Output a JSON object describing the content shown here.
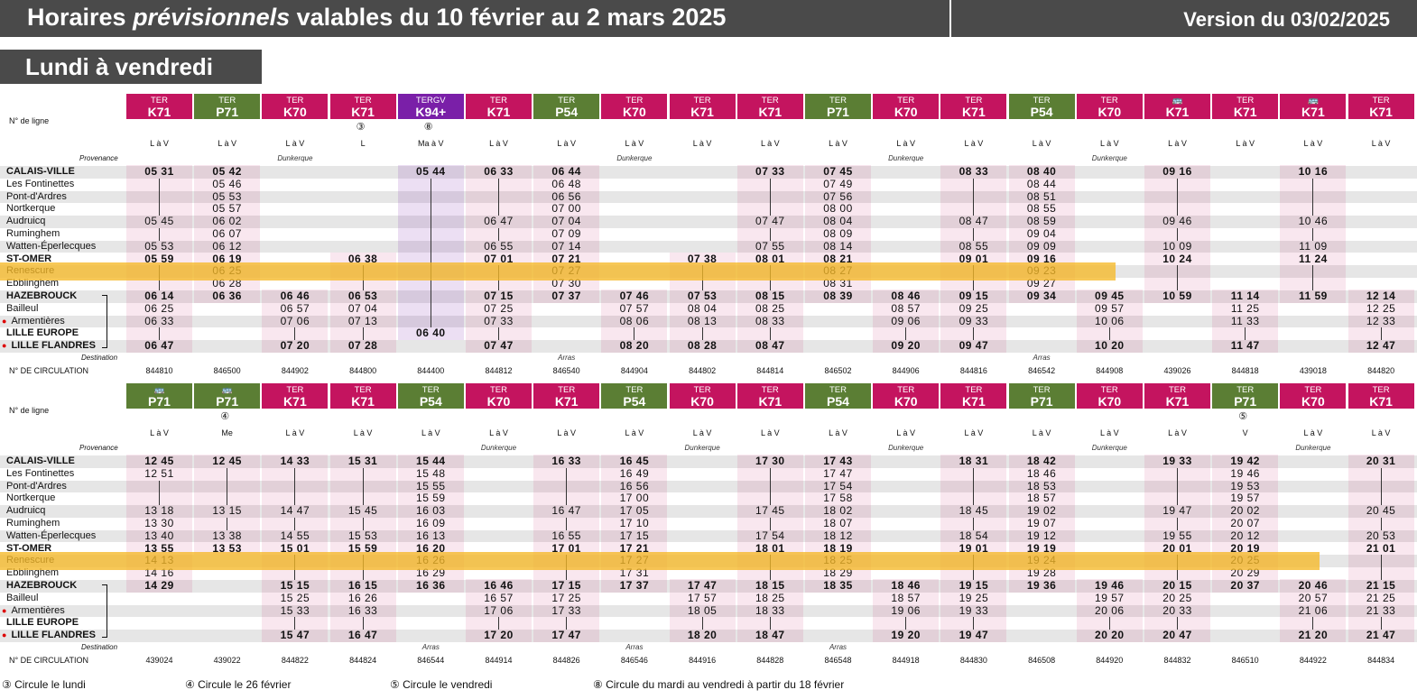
{
  "title_pre": "Horaires ",
  "title_italic": "prévisionnels",
  "title_post": " valables du 10 février au 2 mars 2025",
  "version": "Version du 03/02/2025",
  "subtitle": "Lundi à vendredi",
  "labels": {
    "line": "N° de ligne",
    "provenance": "Provenance",
    "destination": "Destination",
    "circulation": "N° DE CIRCULATION"
  },
  "stations": [
    "CALAIS-VILLE",
    "Les Fontinettes",
    "Pont-d'Ardres",
    "Nortkerque",
    "Audruicq",
    "Ruminghem",
    "Watten-Éperlecques",
    "ST-OMER",
    "Renescure",
    "Ebblinghem",
    "HAZEBROUCK",
    "Bailleul",
    "Armentières",
    "LILLE EUROPE",
    "LILLE FLANDRES"
  ],
  "bold_stations": [
    0,
    7,
    10,
    13,
    14
  ],
  "dot_stations": [
    12,
    14
  ],
  "top": [
    {
      "kind": "TER",
      "line": "K71",
      "days": "L à V",
      "num": "844810",
      "times": [
        "05 31",
        "",
        "",
        "",
        "05 45",
        "",
        "05 53",
        "05 59",
        "",
        "",
        "06 14",
        "06 25",
        "06 33",
        "",
        "06 47"
      ]
    },
    {
      "kind": "TER",
      "line": "P71",
      "days": "L à V",
      "num": "846500",
      "times": [
        "05 42",
        "05 46",
        "05 53",
        "05 57",
        "06 02",
        "06 07",
        "06 12",
        "06 19",
        "06 25",
        "06 28",
        "06 36",
        "",
        "",
        "",
        ""
      ]
    },
    {
      "kind": "TER",
      "line": "K70",
      "days": "L à V",
      "prov": "Dunkerque",
      "num": "844902",
      "times": [
        "",
        "",
        "",
        "",
        "",
        "",
        "",
        "",
        "",
        "",
        "06 46",
        "06 57",
        "07 06",
        "",
        "07 20"
      ]
    },
    {
      "kind": "TER",
      "line": "K71",
      "days": "L",
      "note": "③",
      "num": "844800",
      "times": [
        "",
        "",
        "",
        "",
        "",
        "",
        "",
        "06 38",
        "",
        "",
        "06 53",
        "07 04",
        "07 13",
        "",
        "07 28"
      ]
    },
    {
      "kind": "TERGV",
      "line": "K94+",
      "days": "Ma à V",
      "note": "⑧",
      "num": "844400",
      "times": [
        "05 44",
        "",
        "",
        "",
        "",
        "",
        "",
        "",
        "",
        "",
        "",
        "",
        "",
        "06 40",
        ""
      ]
    },
    {
      "kind": "TER",
      "line": "K71",
      "days": "L à V",
      "num": "844812",
      "times": [
        "06 33",
        "",
        "",
        "",
        "06 47",
        "",
        "06 55",
        "07 01",
        "",
        "",
        "07 15",
        "07 25",
        "07 33",
        "",
        "07 47"
      ]
    },
    {
      "kind": "TER",
      "line": "P54",
      "days": "L à V",
      "dest": "Arras",
      "num": "846540",
      "times": [
        "06 44",
        "06 48",
        "06 56",
        "07 00",
        "07 04",
        "07 09",
        "07 14",
        "07 21",
        "07 27",
        "07 30",
        "07 37",
        "",
        "",
        "",
        ""
      ]
    },
    {
      "kind": "TER",
      "line": "K70",
      "days": "L à V",
      "prov": "Dunkerque",
      "num": "844904",
      "times": [
        "",
        "",
        "",
        "",
        "",
        "",
        "",
        "",
        "",
        "",
        "07 46",
        "07 57",
        "08 06",
        "",
        "08 20"
      ]
    },
    {
      "kind": "TER",
      "line": "K71",
      "days": "L à V",
      "num": "844802",
      "times": [
        "",
        "",
        "",
        "",
        "",
        "",
        "",
        "07 38",
        "",
        "",
        "07 53",
        "08 04",
        "08 13",
        "",
        "08 28"
      ]
    },
    {
      "kind": "TER",
      "line": "K71",
      "days": "L à V",
      "num": "844814",
      "times": [
        "07 33",
        "",
        "",
        "",
        "07 47",
        "",
        "07 55",
        "08 01",
        "",
        "",
        "08 15",
        "08 25",
        "08 33",
        "",
        "08 47"
      ]
    },
    {
      "kind": "TER",
      "line": "P71",
      "days": "L à V",
      "num": "846502",
      "times": [
        "07 45",
        "07 49",
        "07 56",
        "08 00",
        "08 04",
        "08 09",
        "08 14",
        "08 21",
        "08 27",
        "08 31",
        "08 39",
        "",
        "",
        "",
        ""
      ]
    },
    {
      "kind": "TER",
      "line": "K70",
      "days": "L à V",
      "prov": "Dunkerque",
      "num": "844906",
      "times": [
        "",
        "",
        "",
        "",
        "",
        "",
        "",
        "",
        "",
        "",
        "08 46",
        "08 57",
        "09 06",
        "",
        "09 20"
      ]
    },
    {
      "kind": "TER",
      "line": "K71",
      "days": "L à V",
      "num": "844816",
      "times": [
        "08 33",
        "",
        "",
        "",
        "08 47",
        "",
        "08 55",
        "09 01",
        "",
        "",
        "09 15",
        "09 25",
        "09 33",
        "",
        "09 47"
      ]
    },
    {
      "kind": "TER",
      "line": "P54",
      "days": "L à V",
      "dest": "Arras",
      "num": "846542",
      "times": [
        "08 40",
        "08 44",
        "08 51",
        "08 55",
        "08 59",
        "09 04",
        "09 09",
        "09 16",
        "09 23",
        "09 27",
        "09 34",
        "",
        "",
        "",
        ""
      ]
    },
    {
      "kind": "TER",
      "line": "K70",
      "days": "L à V",
      "prov": "Dunkerque",
      "num": "844908",
      "times": [
        "",
        "",
        "",
        "",
        "",
        "",
        "",
        "",
        "",
        "",
        "09 45",
        "09 57",
        "10 06",
        "",
        "10 20"
      ]
    },
    {
      "kind": "BUS",
      "line": "K71",
      "days": "L à V",
      "num": "439026",
      "times": [
        "09 16",
        "",
        "",
        "",
        "09 46",
        "",
        "10 09",
        "10 24",
        "",
        "",
        "10 59",
        "",
        "",
        "",
        ""
      ]
    },
    {
      "kind": "TER",
      "line": "K71",
      "days": "L à V",
      "num": "844818",
      "times": [
        "",
        "",
        "",
        "",
        "",
        "",
        "",
        "",
        "",
        "",
        "11 14",
        "11 25",
        "11 33",
        "",
        "11 47"
      ]
    },
    {
      "kind": "BUS",
      "line": "K71",
      "days": "L à V",
      "num": "439018",
      "times": [
        "10 16",
        "",
        "",
        "",
        "10 46",
        "",
        "11 09",
        "11 24",
        "",
        "",
        "11 59",
        "",
        "",
        "",
        ""
      ]
    },
    {
      "kind": "TER",
      "line": "K71",
      "days": "L à V",
      "num": "844820",
      "times": [
        "",
        "",
        "",
        "",
        "",
        "",
        "",
        "",
        "",
        "",
        "12 14",
        "12 25",
        "12 33",
        "",
        "12 47"
      ]
    }
  ],
  "bottom": [
    {
      "kind": "BUS",
      "line": "P71",
      "days": "L à V",
      "num": "439024",
      "times": [
        "12 45",
        "12 51",
        "",
        "",
        "13 18",
        "13 30",
        "13 40",
        "13 55",
        "14 13",
        "14 16",
        "14 29",
        "",
        "",
        "",
        ""
      ]
    },
    {
      "kind": "BUS",
      "line": "P71",
      "days": "Me",
      "note": "④",
      "num": "439022",
      "times": [
        "12 45",
        "",
        "",
        "",
        "13 15",
        "",
        "13 38",
        "13 53",
        "",
        "",
        "",
        "",
        "",
        "",
        ""
      ]
    },
    {
      "kind": "TER",
      "line": "K71",
      "days": "L à V",
      "num": "844822",
      "times": [
        "14 33",
        "",
        "",
        "",
        "14 47",
        "",
        "14 55",
        "15 01",
        "",
        "",
        "15 15",
        "15 25",
        "15 33",
        "",
        "15 47"
      ]
    },
    {
      "kind": "TER",
      "line": "K71",
      "days": "L à V",
      "num": "844824",
      "times": [
        "15 31",
        "",
        "",
        "",
        "15 45",
        "",
        "15 53",
        "15 59",
        "",
        "",
        "16 15",
        "16 26",
        "16 33",
        "",
        "16 47"
      ]
    },
    {
      "kind": "TER",
      "line": "P54",
      "days": "L à V",
      "dest": "Arras",
      "num": "846544",
      "times": [
        "15 44",
        "15 48",
        "15 55",
        "15 59",
        "16 03",
        "16 09",
        "16 13",
        "16 20",
        "16 26",
        "16 29",
        "16 36",
        "",
        "",
        "",
        ""
      ]
    },
    {
      "kind": "TER",
      "line": "K70",
      "days": "L à V",
      "prov": "Dunkerque",
      "num": "844914",
      "times": [
        "",
        "",
        "",
        "",
        "",
        "",
        "",
        "",
        "",
        "",
        "16 46",
        "16 57",
        "17 06",
        "",
        "17 20"
      ]
    },
    {
      "kind": "TER",
      "line": "K71",
      "days": "L à V",
      "num": "844826",
      "times": [
        "16 33",
        "",
        "",
        "",
        "16 47",
        "",
        "16 55",
        "17 01",
        "",
        "",
        "17 15",
        "17 25",
        "17 33",
        "",
        "17 47"
      ]
    },
    {
      "kind": "TER",
      "line": "P54",
      "days": "L à V",
      "dest": "Arras",
      "num": "846546",
      "times": [
        "16 45",
        "16 49",
        "16 56",
        "17 00",
        "17 05",
        "17 10",
        "17 15",
        "17 21",
        "17 27",
        "17 31",
        "17 37",
        "",
        "",
        "",
        ""
      ]
    },
    {
      "kind": "TER",
      "line": "K70",
      "days": "L à V",
      "prov": "Dunkerque",
      "num": "844916",
      "times": [
        "",
        "",
        "",
        "",
        "",
        "",
        "",
        "",
        "",
        "",
        "17 47",
        "17 57",
        "18 05",
        "",
        "18 20"
      ]
    },
    {
      "kind": "TER",
      "line": "K71",
      "days": "L à V",
      "num": "844828",
      "times": [
        "17 30",
        "",
        "",
        "",
        "17 45",
        "",
        "17 54",
        "18 01",
        "",
        "",
        "18 15",
        "18 25",
        "18 33",
        "",
        "18 47"
      ]
    },
    {
      "kind": "TER",
      "line": "P54",
      "days": "L à V",
      "dest": "Arras",
      "num": "846548",
      "times": [
        "17 43",
        "17 47",
        "17 54",
        "17 58",
        "18 02",
        "18 07",
        "18 12",
        "18 19",
        "18 25",
        "18 29",
        "18 35",
        "",
        "",
        "",
        ""
      ]
    },
    {
      "kind": "TER",
      "line": "K70",
      "days": "L à V",
      "prov": "Dunkerque",
      "num": "844918",
      "times": [
        "",
        "",
        "",
        "",
        "",
        "",
        "",
        "",
        "",
        "",
        "18 46",
        "18 57",
        "19 06",
        "",
        "19 20"
      ]
    },
    {
      "kind": "TER",
      "line": "K71",
      "days": "L à V",
      "num": "844830",
      "times": [
        "18 31",
        "",
        "",
        "",
        "18 45",
        "",
        "18 54",
        "19 01",
        "",
        "",
        "19 15",
        "19 25",
        "19 33",
        "",
        "19 47"
      ]
    },
    {
      "kind": "TER",
      "line": "P71",
      "days": "L à V",
      "num": "846508",
      "times": [
        "18 42",
        "18 46",
        "18 53",
        "18 57",
        "19 02",
        "19 07",
        "19 12",
        "19 19",
        "19 24",
        "19 28",
        "19 36",
        "",
        "",
        "",
        ""
      ]
    },
    {
      "kind": "TER",
      "line": "K70",
      "days": "L à V",
      "prov": "Dunkerque",
      "num": "844920",
      "times": [
        "",
        "",
        "",
        "",
        "",
        "",
        "",
        "",
        "",
        "",
        "19 46",
        "19 57",
        "20 06",
        "",
        "20 20"
      ]
    },
    {
      "kind": "TER",
      "line": "K71",
      "days": "L à V",
      "num": "844832",
      "times": [
        "19 33",
        "",
        "",
        "",
        "19 47",
        "",
        "19 55",
        "20 01",
        "",
        "",
        "20 15",
        "20 25",
        "20 33",
        "",
        "20 47"
      ]
    },
    {
      "kind": "TER",
      "line": "P71",
      "days": "V",
      "note": "⑤",
      "num": "846510",
      "times": [
        "19 42",
        "19 46",
        "19 53",
        "19 57",
        "20 02",
        "20 07",
        "20 12",
        "20 19",
        "20 25",
        "20 29",
        "20 37",
        "",
        "",
        "",
        ""
      ]
    },
    {
      "kind": "TER",
      "line": "K70",
      "days": "L à V",
      "prov": "Dunkerque",
      "num": "844922",
      "times": [
        "",
        "",
        "",
        "",
        "",
        "",
        "",
        "",
        "",
        "",
        "20 46",
        "20 57",
        "21 06",
        "",
        "21 20"
      ]
    },
    {
      "kind": "TER",
      "line": "K71",
      "days": "L à V",
      "num": "844834",
      "times": [
        "20 31",
        "",
        "",
        "",
        "20 45",
        "",
        "20 53",
        "21 01",
        "",
        "",
        "21 15",
        "21 25",
        "21 33",
        "",
        "21 47"
      ]
    }
  ],
  "footnotes": [
    "③ Circule le lundi",
    "④ Circule le 26 février",
    "⑤ Circule le vendredi",
    "⑧ Circule du mardi au vendredi à partir du 18 février"
  ],
  "colors": {
    "ter": "#c4145f",
    "p": "#5b7e34",
    "tergv": "#7a1fa8",
    "highlight": "#f5b928"
  }
}
